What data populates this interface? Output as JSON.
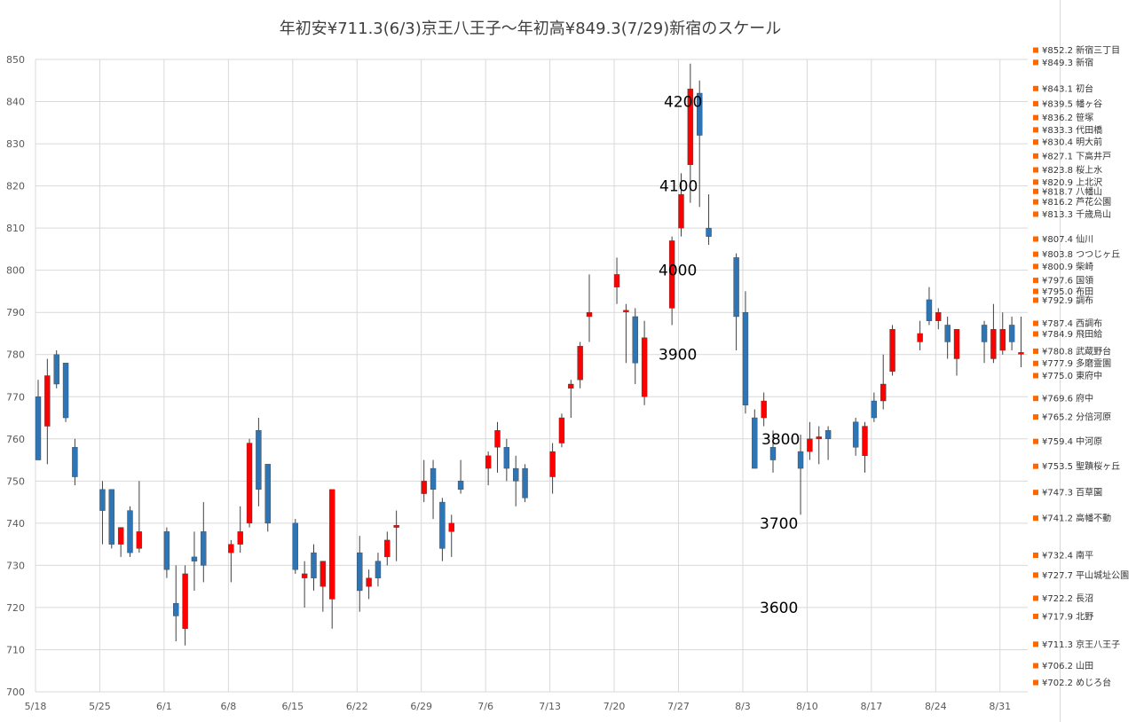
{
  "chart_data": {
    "type": "candlestick",
    "title": "年初安¥711.3(6/3)京王八王子～年初高¥849.3(7/29)新宿のスケール",
    "ylim": [
      700,
      850
    ],
    "yticks": [
      700,
      710,
      720,
      730,
      740,
      750,
      760,
      770,
      780,
      790,
      800,
      810,
      820,
      830,
      840,
      850
    ],
    "xtick_labels": [
      "5/18",
      "5/25",
      "6/1",
      "6/8",
      "6/15",
      "6/22",
      "6/29",
      "7/6",
      "7/13",
      "7/20",
      "7/27",
      "8/3",
      "8/10",
      "8/17",
      "8/24",
      "8/31"
    ],
    "grid": true,
    "up_color": "#ff0000",
    "down_color": "#2e75b6",
    "candles": [
      {
        "x": 0,
        "o": 770,
        "h": 774,
        "l": 755,
        "c": 755
      },
      {
        "x": 1,
        "o": 763,
        "h": 779,
        "l": 754,
        "c": 775
      },
      {
        "x": 2,
        "o": 780,
        "h": 781,
        "l": 772,
        "c": 773
      },
      {
        "x": 3,
        "o": 778,
        "h": 778,
        "l": 764,
        "c": 765
      },
      {
        "x": 4,
        "o": 758,
        "h": 760,
        "l": 749,
        "c": 751
      },
      {
        "x": 7,
        "o": 748,
        "h": 750,
        "l": 735,
        "c": 743
      },
      {
        "x": 8,
        "o": 748,
        "h": 748,
        "l": 734,
        "c": 735
      },
      {
        "x": 9,
        "o": 735,
        "h": 739,
        "l": 732,
        "c": 739
      },
      {
        "x": 10,
        "o": 743,
        "h": 744,
        "l": 732,
        "c": 733
      },
      {
        "x": 11,
        "o": 734,
        "h": 750,
        "l": 733,
        "c": 738
      },
      {
        "x": 14,
        "o": 738,
        "h": 739,
        "l": 727,
        "c": 729
      },
      {
        "x": 15,
        "o": 721,
        "h": 730,
        "l": 712,
        "c": 718
      },
      {
        "x": 16,
        "o": 715,
        "h": 730,
        "l": 711,
        "c": 728
      },
      {
        "x": 17,
        "o": 732,
        "h": 738,
        "l": 724,
        "c": 731
      },
      {
        "x": 18,
        "o": 738,
        "h": 745,
        "l": 726,
        "c": 730
      },
      {
        "x": 21,
        "o": 733,
        "h": 736,
        "l": 726,
        "c": 735
      },
      {
        "x": 22,
        "o": 735,
        "h": 744,
        "l": 733,
        "c": 738
      },
      {
        "x": 23,
        "o": 740,
        "h": 760,
        "l": 739,
        "c": 759
      },
      {
        "x": 24,
        "o": 762,
        "h": 765,
        "l": 744,
        "c": 748
      },
      {
        "x": 25,
        "o": 754,
        "h": 754,
        "l": 738,
        "c": 740
      },
      {
        "x": 28,
        "o": 740,
        "h": 741,
        "l": 728,
        "c": 729
      },
      {
        "x": 29,
        "o": 727,
        "h": 731,
        "l": 720,
        "c": 728
      },
      {
        "x": 30,
        "o": 733,
        "h": 735,
        "l": 724,
        "c": 727
      },
      {
        "x": 31,
        "o": 725,
        "h": 731,
        "l": 719,
        "c": 731
      },
      {
        "x": 32,
        "o": 722,
        "h": 748,
        "l": 715,
        "c": 748
      },
      {
        "x": 35,
        "o": 733,
        "h": 737,
        "l": 719,
        "c": 724
      },
      {
        "x": 36,
        "o": 725,
        "h": 729,
        "l": 722,
        "c": 727
      },
      {
        "x": 37,
        "o": 731,
        "h": 733,
        "l": 725,
        "c": 727
      },
      {
        "x": 38,
        "o": 732,
        "h": 738,
        "l": 730,
        "c": 736
      },
      {
        "x": 39,
        "o": 739,
        "h": 743,
        "l": 731,
        "c": 739.5
      },
      {
        "x": 42,
        "o": 747,
        "h": 755,
        "l": 745,
        "c": 750
      },
      {
        "x": 43,
        "o": 753,
        "h": 755,
        "l": 741,
        "c": 748
      },
      {
        "x": 44,
        "o": 745,
        "h": 746,
        "l": 731,
        "c": 734
      },
      {
        "x": 45,
        "o": 738,
        "h": 742,
        "l": 732,
        "c": 740
      },
      {
        "x": 46,
        "o": 750,
        "h": 755,
        "l": 747,
        "c": 748
      },
      {
        "x": 49,
        "o": 753,
        "h": 757,
        "l": 749,
        "c": 756
      },
      {
        "x": 50,
        "o": 758,
        "h": 764,
        "l": 752,
        "c": 762
      },
      {
        "x": 51,
        "o": 758,
        "h": 760,
        "l": 750,
        "c": 753
      },
      {
        "x": 52,
        "o": 753,
        "h": 756,
        "l": 744,
        "c": 750
      },
      {
        "x": 53,
        "o": 753,
        "h": 754,
        "l": 745,
        "c": 746
      },
      {
        "x": 56,
        "o": 751,
        "h": 759,
        "l": 747,
        "c": 757
      },
      {
        "x": 57,
        "o": 759,
        "h": 766,
        "l": 758,
        "c": 765
      },
      {
        "x": 58,
        "o": 772,
        "h": 774,
        "l": 765,
        "c": 773
      },
      {
        "x": 59,
        "o": 774,
        "h": 783,
        "l": 772,
        "c": 782
      },
      {
        "x": 60,
        "o": 789,
        "h": 799,
        "l": 783,
        "c": 790
      },
      {
        "x": 63,
        "o": 796,
        "h": 803,
        "l": 792,
        "c": 799
      },
      {
        "x": 64,
        "o": 790.5,
        "h": 792,
        "l": 778,
        "c": 790.5
      },
      {
        "x": 65,
        "o": 789,
        "h": 791,
        "l": 773,
        "c": 778
      },
      {
        "x": 66,
        "o": 770,
        "h": 788,
        "l": 768,
        "c": 784
      },
      {
        "x": 69,
        "o": 791,
        "h": 808,
        "l": 787,
        "c": 807
      },
      {
        "x": 70,
        "o": 810,
        "h": 823,
        "l": 808,
        "c": 818
      },
      {
        "x": 71,
        "o": 825,
        "h": 849,
        "l": 816,
        "c": 843
      },
      {
        "x": 72,
        "o": 842,
        "h": 845,
        "l": 815,
        "c": 832
      },
      {
        "x": 73,
        "o": 810,
        "h": 818,
        "l": 806,
        "c": 808
      },
      {
        "x": 76,
        "o": 803,
        "h": 804,
        "l": 781,
        "c": 789
      },
      {
        "x": 77,
        "o": 790,
        "h": 795,
        "l": 766,
        "c": 768
      },
      {
        "x": 78,
        "o": 765,
        "h": 767,
        "l": 753,
        "c": 753
      },
      {
        "x": 79,
        "o": 765,
        "h": 771,
        "l": 763,
        "c": 769
      },
      {
        "x": 80,
        "o": 758,
        "h": 762,
        "l": 752,
        "c": 755
      },
      {
        "x": 83,
        "o": 757,
        "h": 761,
        "l": 742,
        "c": 753
      },
      {
        "x": 84,
        "o": 757,
        "h": 764,
        "l": 755,
        "c": 760
      },
      {
        "x": 85,
        "o": 760,
        "h": 763,
        "l": 754,
        "c": 760.5
      },
      {
        "x": 86,
        "o": 762,
        "h": 763,
        "l": 755,
        "c": 760
      },
      {
        "x": 89,
        "o": 764,
        "h": 765,
        "l": 756,
        "c": 758
      },
      {
        "x": 90,
        "o": 756,
        "h": 764,
        "l": 752,
        "c": 763
      },
      {
        "x": 91,
        "o": 769,
        "h": 771,
        "l": 764,
        "c": 765
      },
      {
        "x": 92,
        "o": 769,
        "h": 780,
        "l": 767,
        "c": 773
      },
      {
        "x": 93,
        "o": 776,
        "h": 787,
        "l": 775,
        "c": 786
      },
      {
        "x": 96,
        "o": 783,
        "h": 788,
        "l": 781,
        "c": 785
      },
      {
        "x": 97,
        "o": 793,
        "h": 796,
        "l": 787,
        "c": 788
      },
      {
        "x": 98,
        "o": 788,
        "h": 791,
        "l": 786,
        "c": 790
      },
      {
        "x": 99,
        "o": 787,
        "h": 789,
        "l": 779,
        "c": 783
      },
      {
        "x": 100,
        "o": 779,
        "h": 786,
        "l": 775,
        "c": 786
      },
      {
        "x": 103,
        "o": 787,
        "h": 788,
        "l": 778,
        "c": 783
      },
      {
        "x": 104,
        "o": 779,
        "h": 792,
        "l": 778,
        "c": 786
      },
      {
        "x": 105,
        "o": 781,
        "h": 790,
        "l": 780,
        "c": 786
      },
      {
        "x": 106,
        "o": 787,
        "h": 789,
        "l": 781,
        "c": 783
      },
      {
        "x": 107,
        "o": 780.5,
        "h": 789,
        "l": 777,
        "c": 780.5
      }
    ],
    "annotations": [
      {
        "text": "4200",
        "y": 840
      },
      {
        "text": "4100",
        "y": 820
      },
      {
        "text": "4000",
        "y": 800
      },
      {
        "text": "3900",
        "y": 780
      },
      {
        "text": "3800",
        "y": 760
      },
      {
        "text": "3700",
        "y": 740
      },
      {
        "text": "3600",
        "y": 720
      }
    ],
    "scale_series_color": "#ff6600",
    "scale": [
      {
        "price": 852.2,
        "label": "¥852.2 新宿三丁目"
      },
      {
        "price": 849.3,
        "label": "¥849.3 新宿"
      },
      {
        "price": 843.1,
        "label": "¥843.1 初台"
      },
      {
        "price": 839.5,
        "label": "¥839.5 幡ヶ谷"
      },
      {
        "price": 836.2,
        "label": "¥836.2 笹塚"
      },
      {
        "price": 833.3,
        "label": "¥833.3 代田橋"
      },
      {
        "price": 830.4,
        "label": "¥830.4 明大前"
      },
      {
        "price": 827.1,
        "label": "¥827.1 下高井戸"
      },
      {
        "price": 823.8,
        "label": "¥823.8 桜上水"
      },
      {
        "price": 820.9,
        "label": "¥820.9 上北沢"
      },
      {
        "price": 818.7,
        "label": "¥818.7 八幡山"
      },
      {
        "price": 816.2,
        "label": "¥816.2 芦花公園"
      },
      {
        "price": 813.3,
        "label": "¥813.3 千歳烏山"
      },
      {
        "price": 807.4,
        "label": "¥807.4 仙川"
      },
      {
        "price": 803.8,
        "label": "¥803.8 つつじヶ丘"
      },
      {
        "price": 800.9,
        "label": "¥800.9 柴崎"
      },
      {
        "price": 797.6,
        "label": "¥797.6 国領"
      },
      {
        "price": 795.0,
        "label": "¥795.0 布田"
      },
      {
        "price": 792.9,
        "label": "¥792.9 調布"
      },
      {
        "price": 787.4,
        "label": "¥787.4 西調布"
      },
      {
        "price": 784.9,
        "label": "¥784.9 飛田給"
      },
      {
        "price": 780.8,
        "label": "¥780.8 武蔵野台"
      },
      {
        "price": 777.9,
        "label": "¥777.9 多磨霊園"
      },
      {
        "price": 775.0,
        "label": "¥775.0 東府中"
      },
      {
        "price": 769.6,
        "label": "¥769.6 府中"
      },
      {
        "price": 765.2,
        "label": "¥765.2 分倍河原"
      },
      {
        "price": 759.4,
        "label": "¥759.4 中河原"
      },
      {
        "price": 753.5,
        "label": "¥753.5 聖蹟桜ヶ丘"
      },
      {
        "price": 747.3,
        "label": "¥747.3 百草園"
      },
      {
        "price": 741.2,
        "label": "¥741.2 高幡不動"
      },
      {
        "price": 732.4,
        "label": "¥732.4 南平"
      },
      {
        "price": 727.7,
        "label": "¥727.7 平山城址公園"
      },
      {
        "price": 722.2,
        "label": "¥722.2 長沼"
      },
      {
        "price": 717.9,
        "label": "¥717.9 北野"
      },
      {
        "price": 711.3,
        "label": "¥711.3 京王八王子"
      },
      {
        "price": 706.2,
        "label": "¥706.2 山田"
      },
      {
        "price": 702.2,
        "label": "¥702.2 めじろ台"
      }
    ]
  }
}
